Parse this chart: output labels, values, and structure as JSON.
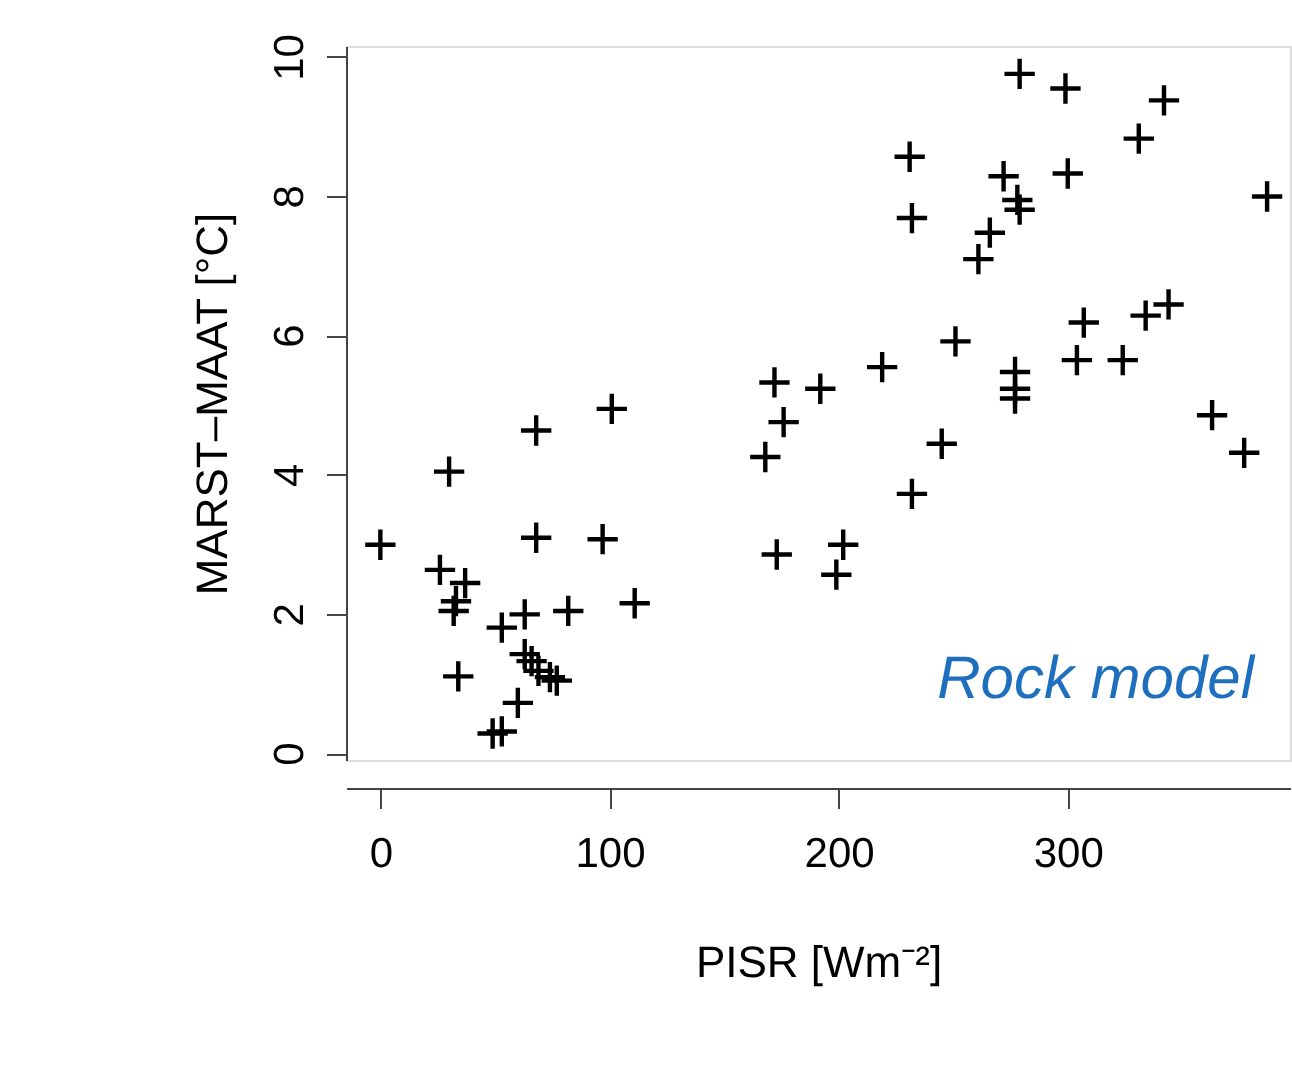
{
  "chart_data": {
    "type": "scatter",
    "xlabel": "PISR [Wm⁻²]",
    "ylabel": "MARST–MAAT [°C]",
    "annotations": [
      "Rock model"
    ],
    "x": [
      0,
      30,
      26,
      37,
      33,
      32,
      34,
      68,
      101,
      68,
      97,
      111,
      82,
      63,
      53,
      63,
      66,
      69,
      74,
      77,
      60,
      53,
      49,
      279,
      299,
      342,
      331,
      231,
      272,
      300,
      387,
      278,
      279,
      232,
      266,
      261,
      307,
      334,
      344,
      251,
      304,
      324,
      219,
      172,
      192,
      277,
      277,
      277,
      176,
      363,
      168,
      245,
      377,
      232,
      173,
      202,
      199
    ],
    "series": [
      {
        "color": "#000000",
        "values": [
          2.99,
          4.04,
          2.63,
          2.44,
          2.18,
          2.04,
          1.1,
          4.63,
          4.94,
          3.09,
          3.07,
          2.15,
          2.04,
          1.99,
          1.8,
          1.42,
          1.32,
          1.18,
          1.09,
          1.04,
          0.72,
          0.31,
          0.28,
          9.75,
          9.54,
          9.37,
          8.82,
          8.56,
          8.28,
          8.32,
          7.99,
          7.94,
          7.8,
          7.68,
          7.47,
          7.09,
          6.18,
          6.28,
          6.44,
          5.91,
          5.64,
          5.64,
          5.54,
          5.32,
          5.23,
          5.47,
          5.23,
          5.09,
          4.75,
          4.85,
          4.25,
          4.44,
          4.31,
          3.72,
          2.85,
          2.99,
          2.56
        ]
      }
    ],
    "xlim": [
      -15,
      397
    ],
    "ylim": [
      -0.1,
      10.15
    ],
    "xticks": [
      0,
      100,
      200,
      300
    ],
    "yticks": [
      0,
      2,
      4,
      6,
      8,
      10
    ],
    "marker": "cross",
    "grid": false
  }
}
